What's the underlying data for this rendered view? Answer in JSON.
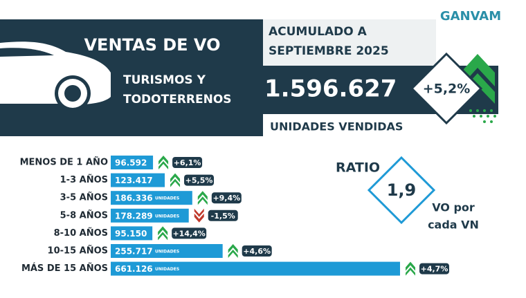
{
  "logo": "GANVAM",
  "header": {
    "title": "VENTAS DE VO",
    "period_line1": "ACUMULADO A",
    "period_line2": "SEPTIEMBRE 2025",
    "segment_line1": "TURISMOS Y",
    "segment_line2": "TODOTERRENOS",
    "total": "1.596.627",
    "growth": "+5,2%",
    "total_caption": "UNIDADES VENDIDAS"
  },
  "ratio": {
    "title": "RATIO",
    "value": "1,9",
    "caption_line1": "VO por",
    "caption_line2": "cada VN"
  },
  "chart_data": {
    "type": "bar",
    "orientation": "horizontal",
    "categories": [
      "MENOS DE 1 AÑO",
      "1-3 AÑOS",
      "3-5 AÑOS",
      "5-8 AÑOS",
      "8-10 AÑOS",
      "10-15 AÑOS",
      "MÁS DE 15 AÑOS"
    ],
    "values": [
      96592,
      123417,
      186336,
      178289,
      95150,
      255717,
      661126
    ],
    "value_labels": [
      "96.592",
      "123.417",
      "186.336",
      "178.289",
      "95.150",
      "255.717",
      "661.126"
    ],
    "unit_label": "UNIDADES",
    "changes": [
      6.1,
      5.5,
      9.4,
      -1.5,
      14.4,
      4.6,
      4.7
    ],
    "change_labels": [
      "+6,1%",
      "+5,5%",
      "+9,4%",
      "-1,5%",
      "+14,4%",
      "+4,6%",
      "+4,7%"
    ],
    "color": "#1e9ad6",
    "up_color": "#2aa84a",
    "down_color": "#c0392b",
    "xlim": [
      0,
      661126
    ]
  }
}
